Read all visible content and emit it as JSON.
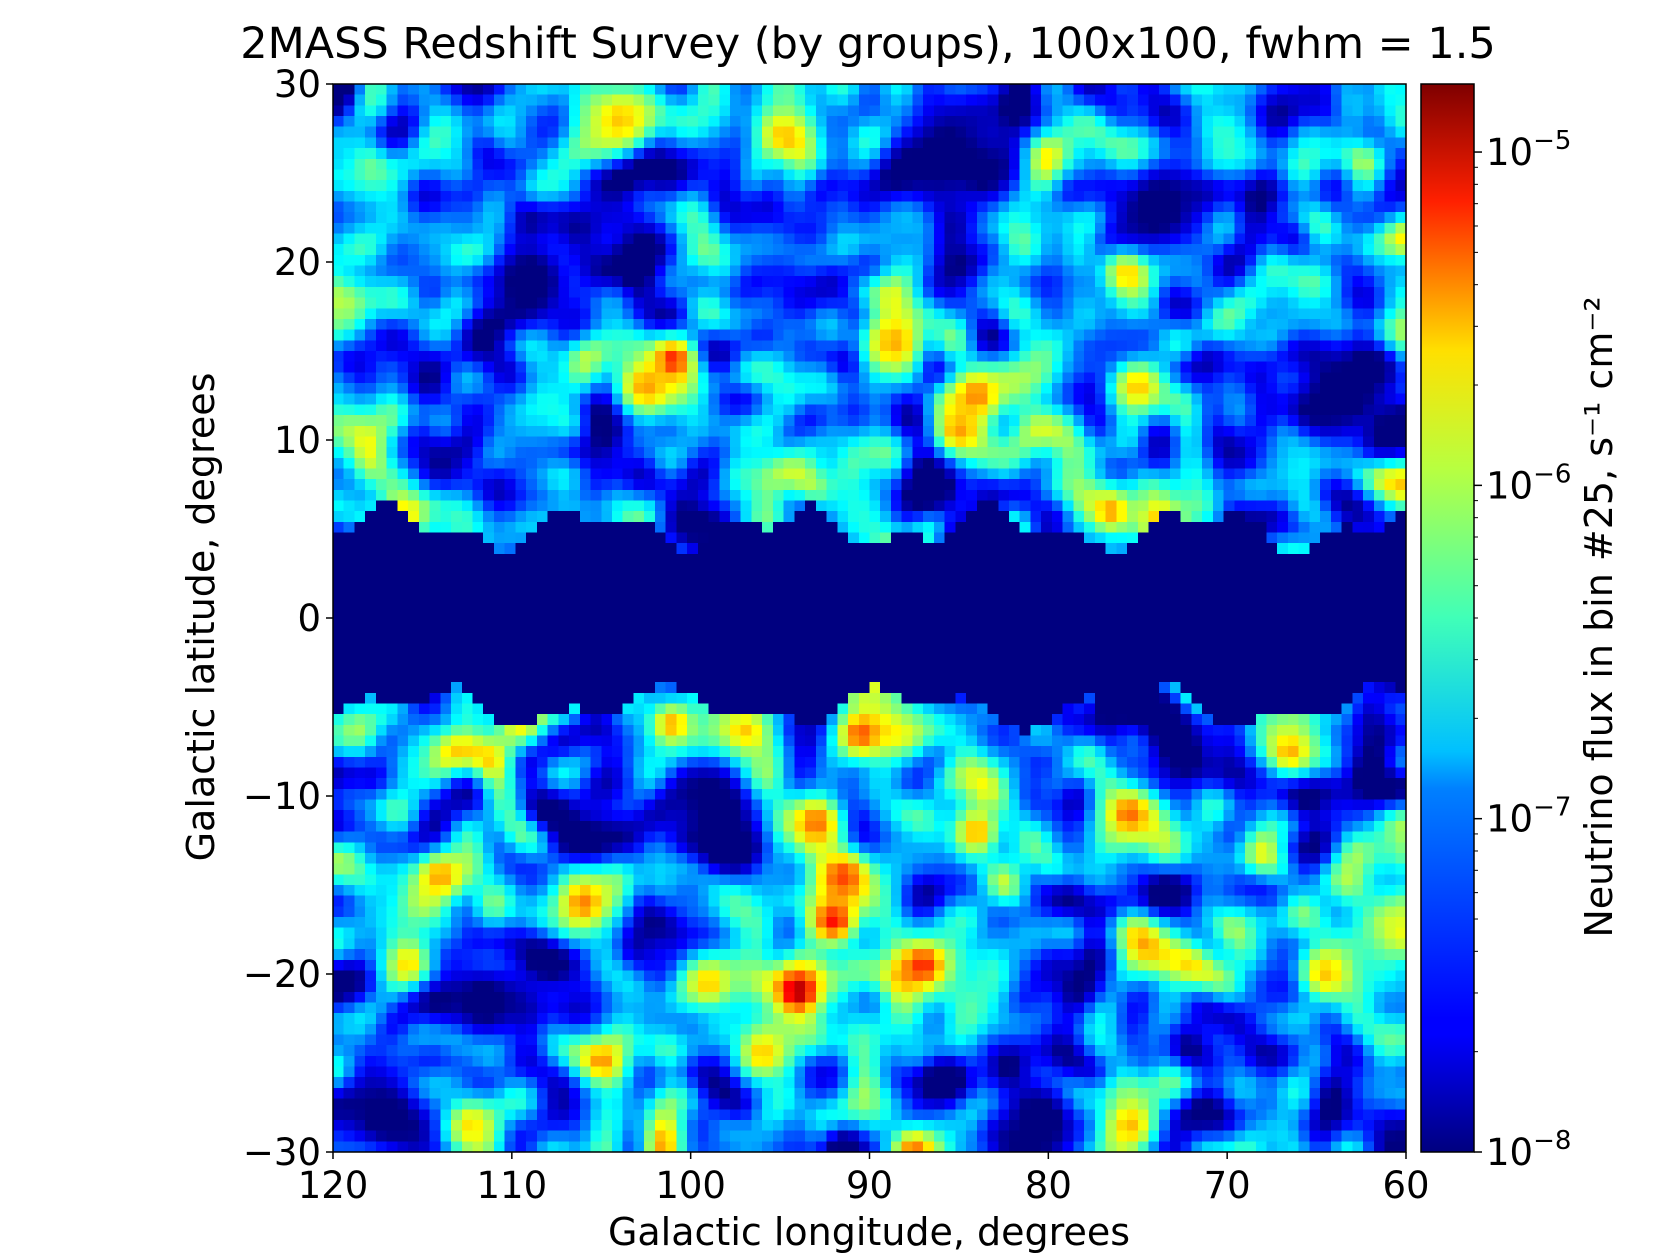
{
  "chart_data": {
    "type": "heatmap",
    "title": "2MASS Redshift Survey (by groups), 100x100, fwhm = 1.5",
    "xlabel": "Galactic longitude, degrees",
    "ylabel": "Galactic latitude, degrees",
    "xlim": [
      120,
      60
    ],
    "ylim": [
      -30,
      30
    ],
    "x_ticks": [
      "120",
      "110",
      "100",
      "90",
      "80",
      "70",
      "60"
    ],
    "y_ticks": [
      "30",
      "20",
      "10",
      "0",
      "−10",
      "−20",
      "−30"
    ],
    "x_tick_values": [
      120,
      110,
      100,
      90,
      80,
      70,
      60
    ],
    "y_tick_values": [
      30,
      20,
      10,
      0,
      -10,
      -20,
      -30
    ],
    "grid": false,
    "grid_resolution": "100x100",
    "colorbar": {
      "label": "Neutrino flux in bin #25, s⁻¹ cm⁻²",
      "scale": "log",
      "range": [
        1e-08,
        1.6e-05
      ],
      "colormap": "jet",
      "ticks": [
        {
          "mantissa": "10",
          "exponent": "−8",
          "value": 1e-08
        },
        {
          "mantissa": "10",
          "exponent": "−7",
          "value": 1e-07
        },
        {
          "mantissa": "10",
          "exponent": "−6",
          "value": 1e-06
        },
        {
          "mantissa": "10",
          "exponent": "−5",
          "value": 1e-05
        }
      ]
    },
    "masked_band_latitude": [
      -5,
      5
    ],
    "hotspots": [
      {
        "l": 94,
        "b": -21,
        "flux": 1.2e-05
      },
      {
        "l": 92,
        "b": -17,
        "flux": 6e-06
      },
      {
        "l": 91.5,
        "b": -14.5,
        "flux": 4e-06
      },
      {
        "l": 93,
        "b": -11.5,
        "flux": 3e-06
      },
      {
        "l": 87,
        "b": -19.5,
        "flux": 5e-06
      },
      {
        "l": 101,
        "b": 14.5,
        "flux": 5e-06
      },
      {
        "l": 102.5,
        "b": 13,
        "flux": 2e-06
      },
      {
        "l": 75.5,
        "b": -11,
        "flux": 3e-06
      },
      {
        "l": 75.5,
        "b": 19.5,
        "flux": 2.5e-06
      },
      {
        "l": 90.5,
        "b": -6.5,
        "flux": 3.5e-06
      },
      {
        "l": 106,
        "b": -16,
        "flux": 2.5e-06
      },
      {
        "l": 84,
        "b": 12.5,
        "flux": 2.5e-06
      },
      {
        "l": 85,
        "b": 10.5,
        "flux": 2e-06
      },
      {
        "l": 101,
        "b": -6,
        "flux": 2e-06
      },
      {
        "l": 97,
        "b": -6.5,
        "flux": 2e-06
      },
      {
        "l": 87.5,
        "b": -30,
        "flux": 3e-06
      },
      {
        "l": 114,
        "b": -14.5,
        "flux": 2e-06
      },
      {
        "l": 88.5,
        "b": 15.5,
        "flux": 1.8e-06
      },
      {
        "l": 76.5,
        "b": 6,
        "flux": 2e-06
      },
      {
        "l": 75.5,
        "b": -28.5,
        "flux": 1.8e-06
      },
      {
        "l": 84,
        "b": -12,
        "flux": 1.8e-06
      },
      {
        "l": 66.5,
        "b": -7.5,
        "flux": 1.8e-06
      },
      {
        "l": 75,
        "b": 13,
        "flux": 1.5e-06
      },
      {
        "l": 64.5,
        "b": -20,
        "flux": 1.5e-06
      },
      {
        "l": 104,
        "b": 28,
        "flux": 1.5e-06
      },
      {
        "l": 112.5,
        "b": -28.5,
        "flux": 1.5e-06
      },
      {
        "l": 96,
        "b": -24.5,
        "flux": 1.5e-06
      },
      {
        "l": 99,
        "b": -20.5,
        "flux": 1.5e-06
      }
    ],
    "voids": [
      {
        "l": 98.5,
        "b": -10.5
      },
      {
        "l": 80.5,
        "b": -28
      },
      {
        "l": 63.5,
        "b": 12.5
      },
      {
        "l": 109,
        "b": 19
      },
      {
        "l": 111.5,
        "b": -21.5
      },
      {
        "l": 74,
        "b": 23
      },
      {
        "l": 112,
        "b": 31
      },
      {
        "l": 86,
        "b": 26
      },
      {
        "l": 117,
        "b": -28
      }
    ]
  }
}
